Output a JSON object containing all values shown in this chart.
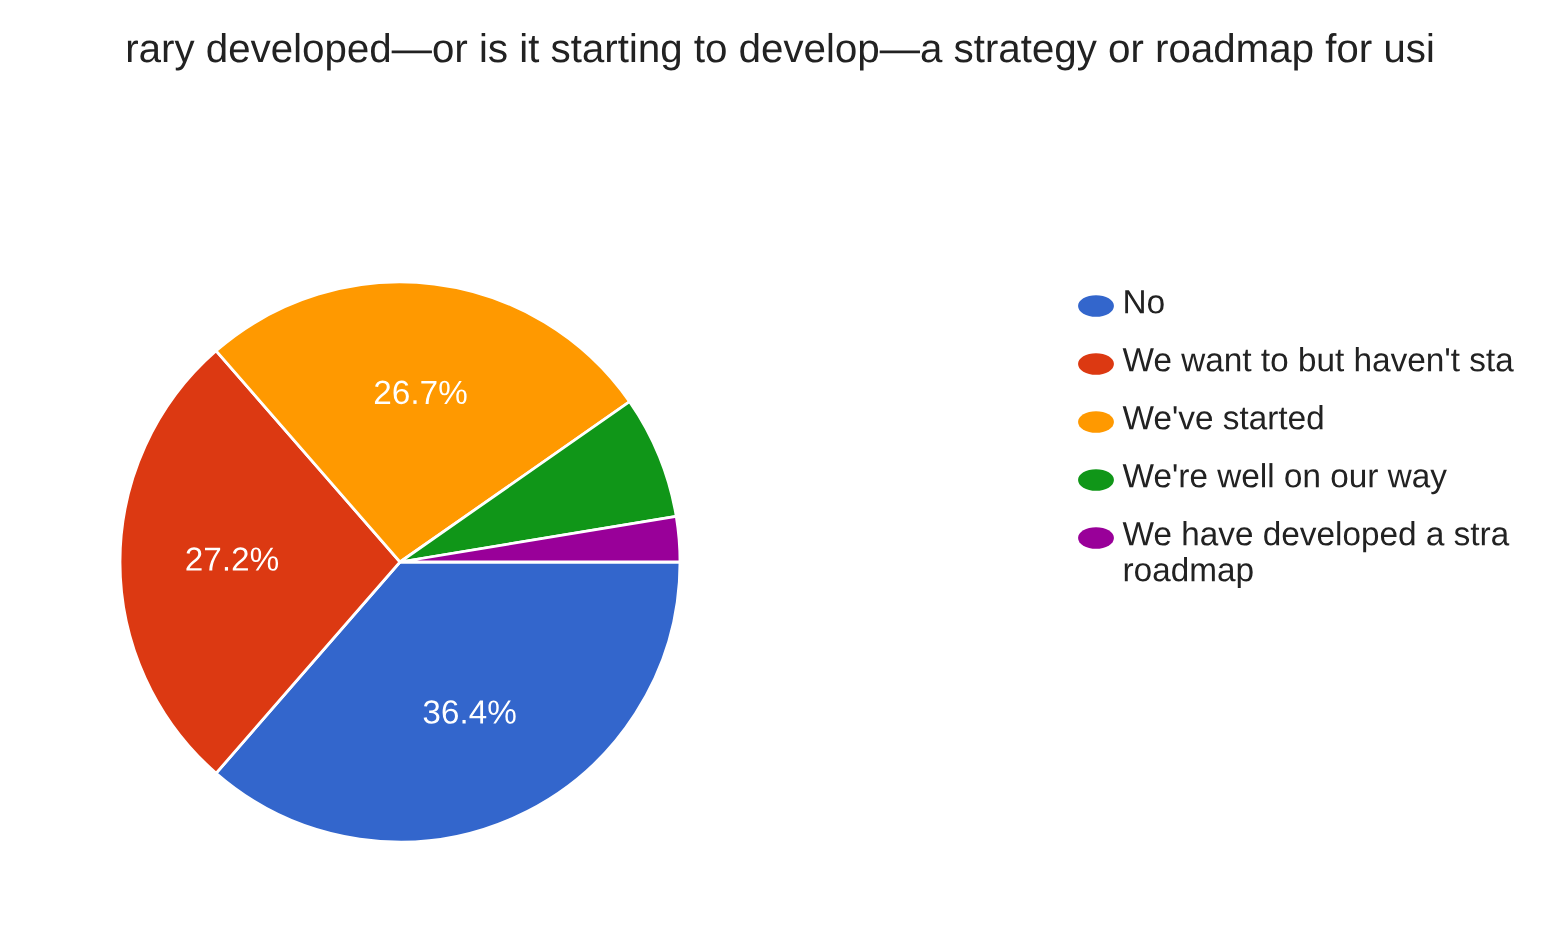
{
  "chart_data": {
    "type": "pie",
    "title": "rary developed—or is it starting to develop—a strategy or roadmap for usi",
    "categories": [
      "No",
      "We want to but haven't sta",
      "We've started",
      "We're well on our way",
      "We have developed a stra\nroadmap"
    ],
    "values": [
      36.4,
      27.2,
      26.7,
      7.1,
      2.6
    ],
    "value_labels": [
      "36.4%",
      "27.2%",
      "26.7%",
      null,
      null
    ],
    "colors": [
      "#3366cc",
      "#dc3912",
      "#ff9900",
      "#109618",
      "#990099"
    ],
    "legend": "right"
  }
}
